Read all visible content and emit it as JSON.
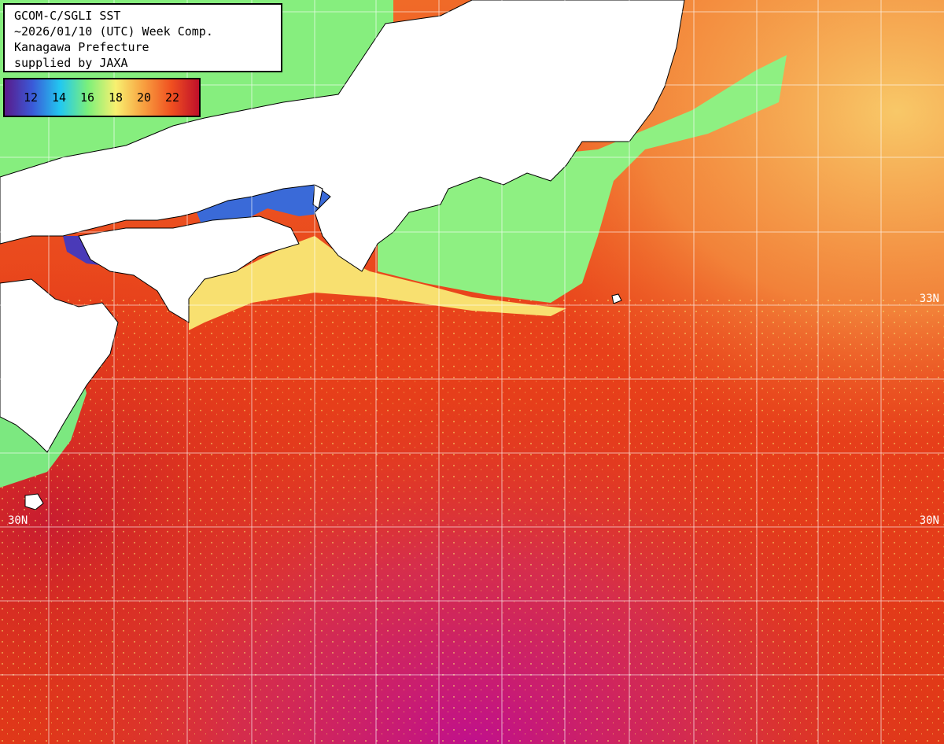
{
  "title": {
    "line1": "GCOM-C/SGLI SST",
    "line2": "~2026/01/10 (UTC) Week Comp.",
    "line3": "Kanagawa Prefecture",
    "line4": "supplied by JAXA"
  },
  "legend": {
    "ticks": [
      "12",
      "14",
      "16",
      "18",
      "20",
      "22"
    ],
    "gradient_colors": [
      "#5a1a8a",
      "#3a5ad8",
      "#22c8f0",
      "#7cf07a",
      "#f8f070",
      "#f8a040",
      "#f05020",
      "#c0102a"
    ]
  },
  "grid": {
    "lat_labels": [
      {
        "text": "33N",
        "side": "right"
      },
      {
        "text": "30N",
        "side": "left"
      },
      {
        "text": "30N",
        "side": "right"
      }
    ]
  },
  "colors": {
    "land": "#ffffff",
    "ocean_warm": "#e63c12",
    "ocean_hot": "#d8201c",
    "ocean_mid": "#f27030",
    "coastal_cool": "#86ee7e",
    "coastal_cold": "#4080e0",
    "south_hot": "#c4108a"
  }
}
